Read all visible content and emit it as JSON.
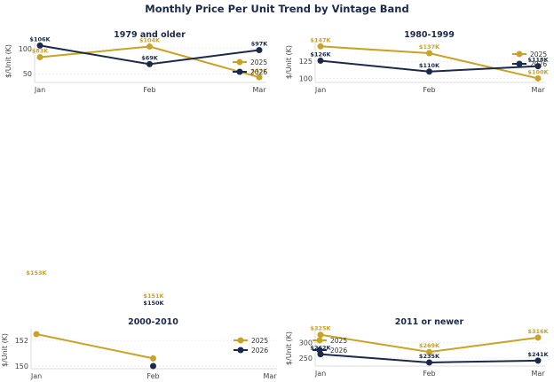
{
  "title": "Monthly Price Per Unit Trend by Vintage Band",
  "colors": {
    "2025": "#c9a227",
    "2026": "#1b2a4a"
  },
  "chart_data": [
    {
      "type": "line",
      "title": "1979 and older",
      "categories": [
        "Jan",
        "Feb",
        "Mar"
      ],
      "ylabel": "$/Unit (K)",
      "yticks": [
        50,
        100
      ],
      "ylim": [
        38,
        112
      ],
      "series": [
        {
          "name": "2025",
          "values": [
            83,
            104,
            43
          ],
          "labels": [
            "$83K",
            "$104K",
            "$43K"
          ]
        },
        {
          "name": "2026",
          "values": [
            106,
            69,
            97
          ],
          "labels": [
            "$106K",
            "$69K",
            "$97K"
          ]
        }
      ],
      "legend": "lower-right"
    },
    {
      "type": "line",
      "title": "1980-1999",
      "categories": [
        "Jan",
        "Feb",
        "Mar"
      ],
      "ylabel": "$/Unit (K)",
      "yticks": [
        100,
        125
      ],
      "ylim": [
        98,
        150
      ],
      "series": [
        {
          "name": "2025",
          "values": [
            147,
            137,
            100
          ],
          "labels": [
            "$147K",
            "$137K",
            "$100K"
          ]
        },
        {
          "name": "2026",
          "values": [
            126,
            110,
            118
          ],
          "labels": [
            "$126K",
            "$110K",
            "$118K"
          ]
        }
      ],
      "legend": "right"
    },
    {
      "type": "line",
      "title": "2000-2010",
      "categories": [
        "Jan",
        "Feb",
        "Mar"
      ],
      "ylabel": "$/Unit (K)",
      "yticks": [
        150,
        152
      ],
      "ylim": [
        150,
        152.5
      ],
      "series": [
        {
          "name": "2025",
          "values": [
            152.5,
            150.6,
            null
          ],
          "labels": [
            "$153K",
            "$151K",
            ""
          ]
        },
        {
          "name": "2026",
          "values": [
            null,
            150,
            null
          ],
          "labels": [
            "",
            "$150K",
            ""
          ]
        }
      ],
      "legend": "right"
    },
    {
      "type": "line",
      "title": "2011 or newer",
      "categories": [
        "Jan",
        "Feb",
        "Mar"
      ],
      "ylabel": "$/Unit (K)",
      "yticks": [
        250,
        300
      ],
      "ylim": [
        232,
        330
      ],
      "series": [
        {
          "name": "2025",
          "values": [
            325,
            269,
            316
          ],
          "labels": [
            "$325K",
            "$269K",
            "$316K"
          ]
        },
        {
          "name": "2026",
          "values": [
            262,
            235,
            241
          ],
          "labels": [
            "$262K",
            "$235K",
            "$241K"
          ]
        }
      ],
      "legend": "upper-left"
    }
  ]
}
